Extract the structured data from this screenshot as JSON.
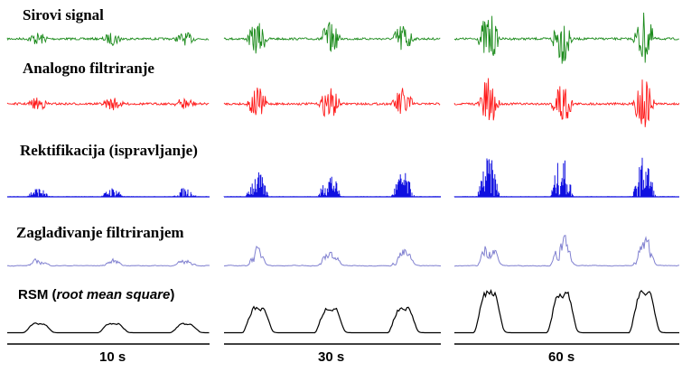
{
  "stages": [
    {
      "id": "raw",
      "label": "Sirovi signal",
      "color": "#1a8a1a",
      "kind": "raw"
    },
    {
      "id": "analog",
      "label": "Analogno filtriranje",
      "color": "#ff1a1a",
      "kind": "raw"
    },
    {
      "id": "rect",
      "label": "Rektifikacija (ispravljanje)",
      "color": "#1010e0",
      "kind": "rect"
    },
    {
      "id": "smooth",
      "label": "Zaglađivanje filtriranjem",
      "color": "#8080d0",
      "kind": "smooth"
    },
    {
      "id": "rsm",
      "label_main": "RSM (",
      "label_italic": "root mean square",
      "label_end": ")",
      "color": "#000000",
      "kind": "rms"
    }
  ],
  "conditions": [
    {
      "label": "10 s",
      "intensity": 0.22
    },
    {
      "label": "30 s",
      "intensity": 0.62
    },
    {
      "label": "60 s",
      "intensity": 1.0
    }
  ],
  "bursts_per_panel": 3
}
